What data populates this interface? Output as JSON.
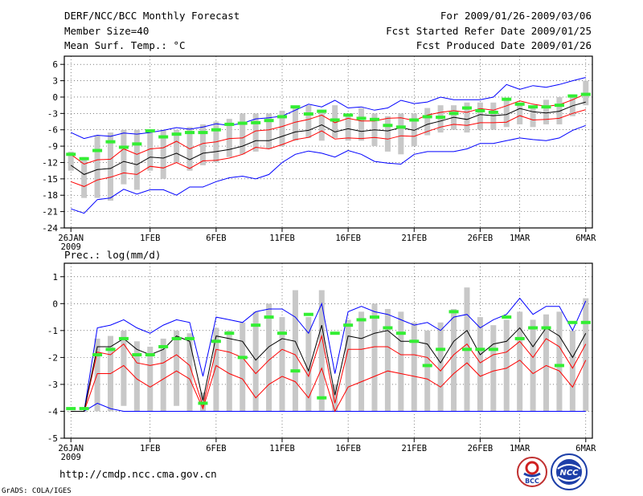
{
  "header": {
    "title": "DERF/NCC/BCC Monthly Forecast",
    "member_size": "Member Size=40",
    "variable": "Mean Surf. Temp.: °C",
    "period": "For 2009/01/26-2009/03/06",
    "start_date": "Fcst Started Refer Date 2009/01/25",
    "produced": "Fcst Produced Date 2009/01/26"
  },
  "footer": {
    "url": "http://cmdp.ncc.cma.gov.cn",
    "credit": "GrADS: COLA/IGES",
    "logo_bcc": "BCC",
    "logo_ncc": "NCC"
  },
  "colors": {
    "envelope": "#0000ff",
    "percentile": "#ff0000",
    "median": "#000000",
    "box": "#c8c8c8",
    "observed": "#33ee33",
    "grid": "#333333"
  },
  "chart_data": [
    {
      "type": "box-ensemble",
      "title": "Mean Surf. Temp.: °C",
      "ylabel": "°C",
      "ylim": [
        -24,
        7.5
      ],
      "yticks": [
        6,
        3,
        0,
        -3,
        -6,
        -9,
        -12,
        -15,
        -18,
        -21,
        -24
      ],
      "xticks": [
        {
          "day": 0,
          "label": "26JAN",
          "sub": "2009"
        },
        {
          "day": 6,
          "label": "1FEB"
        },
        {
          "day": 11,
          "label": "6FEB"
        },
        {
          "day": 16,
          "label": "11FEB"
        },
        {
          "day": 21,
          "label": "16FEB"
        },
        {
          "day": 26,
          "label": "21FEB"
        },
        {
          "day": 31,
          "label": "26FEB"
        },
        {
          "day": 34,
          "label": "1MAR"
        },
        {
          "day": 39,
          "label": "6MAR"
        }
      ],
      "median": [
        -12.5,
        -14.2,
        -13.3,
        -13.1,
        -11.8,
        -12.4,
        -11.0,
        -11.2,
        -10.3,
        -11.5,
        -10.3,
        -10.0,
        -9.6,
        -9.0,
        -8.0,
        -8.0,
        -7.2,
        -6.4,
        -6.1,
        -5.1,
        -6.4,
        -5.8,
        -6.3,
        -6.0,
        -6.2,
        -5.6,
        -6.1,
        -5.0,
        -4.4,
        -3.7,
        -4.1,
        -3.2,
        -3.4,
        -3.2,
        -2.1,
        -2.7,
        -2.9,
        -2.6,
        -1.6,
        -0.9
      ],
      "upper_pct": [
        -10.5,
        -12.3,
        -11.5,
        -11.4,
        -9.5,
        -10.5,
        -9.5,
        -9.3,
        -8.1,
        -9.5,
        -8.5,
        -8.2,
        -7.6,
        -7.5,
        -6.2,
        -6.0,
        -5.4,
        -4.6,
        -4.1,
        -3.3,
        -4.7,
        -3.9,
        -4.4,
        -4.4,
        -3.9,
        -3.8,
        -4.3,
        -3.3,
        -2.8,
        -2.5,
        -2.8,
        -2.1,
        -2.4,
        -1.6,
        -0.7,
        -1.3,
        -1.7,
        -1.4,
        -0.5,
        0.6
      ],
      "lower_pct": [
        -15.5,
        -16.4,
        -15.2,
        -14.7,
        -13.9,
        -14.2,
        -12.7,
        -13.0,
        -12.0,
        -13.1,
        -11.7,
        -11.6,
        -11.2,
        -10.5,
        -9.2,
        -9.5,
        -8.7,
        -7.8,
        -7.4,
        -6.2,
        -7.7,
        -7.5,
        -7.6,
        -7.4,
        -7.7,
        -7.1,
        -7.2,
        -6.3,
        -5.5,
        -5.0,
        -5.2,
        -4.7,
        -4.7,
        -4.6,
        -3.4,
        -4.2,
        -4.1,
        -3.9,
        -3.0,
        -2.3
      ],
      "max": [
        -6.5,
        -7.6,
        -7.0,
        -7.2,
        -6.6,
        -6.8,
        -6.5,
        -6.1,
        -5.6,
        -5.9,
        -5.5,
        -4.9,
        -5.2,
        -4.8,
        -4.0,
        -3.8,
        -3.5,
        -2.4,
        -1.3,
        -1.8,
        -0.6,
        -2.0,
        -1.8,
        -2.4,
        -2.0,
        -0.6,
        -1.2,
        -0.9,
        0.0,
        -0.5,
        -0.5,
        -0.5,
        0.0,
        2.3,
        1.4,
        2.1,
        1.8,
        2.3,
        3.0,
        3.6
      ],
      "min": [
        -20.5,
        -21.3,
        -18.8,
        -18.5,
        -16.9,
        -17.8,
        -17.0,
        -17.0,
        -18.0,
        -16.5,
        -16.5,
        -15.5,
        -14.8,
        -14.5,
        -15.0,
        -14.2,
        -12.0,
        -10.5,
        -9.9,
        -10.3,
        -11.0,
        -9.8,
        -10.5,
        -11.8,
        -12.1,
        -12.3,
        -10.5,
        -10.0,
        -10.0,
        -10.0,
        -9.5,
        -8.5,
        -8.5,
        -8.0,
        -7.5,
        -7.8,
        -8.0,
        -7.5,
        -6.1,
        -5.2
      ],
      "box_top": [
        -10,
        -11,
        -7,
        -6.5,
        -6,
        -6,
        -6.5,
        -6,
        -6,
        -5.5,
        -5,
        -4.5,
        -4,
        -3,
        -3,
        -3,
        -2.5,
        -2,
        -1.5,
        -2.5,
        -1.5,
        -3,
        -2,
        -3,
        -3.5,
        -3,
        -3,
        -2,
        -1.5,
        -1.5,
        -1,
        -1,
        -1,
        -0.5,
        -1,
        -1.5,
        -0.5,
        0,
        0.5,
        3
      ],
      "box_bottom": [
        -13.5,
        -18.5,
        -18.5,
        -19,
        -16,
        -17,
        -13.5,
        -15,
        -12,
        -13.5,
        -12.5,
        -12,
        -11,
        -10.5,
        -10,
        -9.5,
        -9,
        -8,
        -7.5,
        -8,
        -7.5,
        -8,
        -8,
        -9,
        -10,
        -10.5,
        -9,
        -7,
        -6.5,
        -6,
        -6.5,
        -6,
        -6,
        -5.5,
        -5,
        -5.5,
        -5,
        -5,
        -3.5,
        -1.5
      ],
      "observed": [
        -10.5,
        -11.3,
        -9.8,
        -8.2,
        -9.2,
        -8.6,
        -6.2,
        -7.3,
        -6.8,
        -6.5,
        -6.5,
        -6.0,
        -5.0,
        -4.8,
        -4.7,
        -4.3,
        -3.6,
        -1.8,
        -3.1,
        -2.6,
        -4.2,
        -3.3,
        -3.9,
        -4.1,
        -5.2,
        -5.5,
        -4.2,
        -3.6,
        -3.7,
        -3.0,
        -2.0,
        -2.5,
        -2.8,
        -0.4,
        -1.3,
        -1.8,
        -1.8,
        -1.5,
        0.2,
        0.5
      ]
    },
    {
      "type": "box-ensemble",
      "title": "Prec.: log(mm/d)",
      "ylabel": "log(mm/d)",
      "ylim": [
        -5,
        1.5
      ],
      "yticks": [
        1,
        0,
        -1,
        -2,
        -3,
        -4,
        -5
      ],
      "xticks": [
        {
          "day": 0,
          "label": "26JAN",
          "sub": "2009"
        },
        {
          "day": 6,
          "label": "1FEB"
        },
        {
          "day": 11,
          "label": "6FEB"
        },
        {
          "day": 16,
          "label": "11FEB"
        },
        {
          "day": 21,
          "label": "16FEB"
        },
        {
          "day": 26,
          "label": "21FEB"
        },
        {
          "day": 31,
          "label": "26FEB"
        },
        {
          "day": 34,
          "label": "1MAR"
        },
        {
          "day": 39,
          "label": "6MAR"
        }
      ],
      "median": [
        -4,
        -4,
        -1.6,
        -1.6,
        -1.3,
        -1.7,
        -1.9,
        -1.7,
        -1.2,
        -1.4,
        -3.6,
        -1.2,
        -1.3,
        -1.4,
        -2.1,
        -1.6,
        -1.3,
        -1.4,
        -2.5,
        -0.8,
        -3.4,
        -1.2,
        -1.3,
        -1.1,
        -1.0,
        -1.4,
        -1.4,
        -1.5,
        -2.2,
        -1.4,
        -1.0,
        -1.9,
        -1.5,
        -1.4,
        -0.9,
        -1.6,
        -0.9,
        -1.2,
        -2.0,
        -1.1
      ],
      "upper_pct": [
        -4,
        -4,
        -1.8,
        -1.9,
        -1.5,
        -2.2,
        -2.3,
        -2.2,
        -1.9,
        -2.3,
        -3.8,
        -1.7,
        -1.8,
        -2.0,
        -2.6,
        -2.1,
        -1.7,
        -1.9,
        -2.7,
        -1.2,
        -3.7,
        -1.7,
        -1.7,
        -1.6,
        -1.6,
        -1.9,
        -1.9,
        -2.0,
        -2.5,
        -1.9,
        -1.5,
        -2.2,
        -1.9,
        -1.8,
        -1.4,
        -2.0,
        -1.3,
        -1.6,
        -2.4,
        -1.5
      ],
      "lower_pct": [
        -4,
        -4,
        -2.6,
        -2.6,
        -2.3,
        -2.8,
        -3.1,
        -2.8,
        -2.5,
        -2.8,
        -3.9,
        -2.3,
        -2.6,
        -2.8,
        -3.5,
        -3.0,
        -2.7,
        -2.9,
        -3.5,
        -2.4,
        -4.0,
        -3.1,
        -2.9,
        -2.7,
        -2.5,
        -2.6,
        -2.7,
        -2.8,
        -3.1,
        -2.6,
        -2.2,
        -2.7,
        -2.5,
        -2.4,
        -2.1,
        -2.6,
        -2.3,
        -2.5,
        -3.1,
        -2.1
      ],
      "max": [
        -4,
        -4,
        -0.9,
        -0.8,
        -0.6,
        -0.9,
        -1.1,
        -0.8,
        -0.6,
        -0.7,
        -2.7,
        -0.5,
        -0.6,
        -0.7,
        -0.3,
        -0.2,
        -0.2,
        -0.5,
        -1.1,
        0.0,
        -2.6,
        -0.3,
        -0.1,
        -0.3,
        -0.4,
        -0.6,
        -0.8,
        -0.7,
        -1.0,
        -0.5,
        -0.4,
        -0.9,
        -0.6,
        -0.4,
        0.2,
        -0.4,
        -0.1,
        -0.1,
        -1.0,
        0.1
      ],
      "min": [
        -4,
        -4,
        -3.7,
        -3.9,
        -4,
        -4,
        -4,
        -4,
        -4,
        -4,
        -4,
        -4,
        -4,
        -4,
        -4,
        -4,
        -4,
        -4,
        -4,
        -4,
        -4,
        -4,
        -4,
        -4,
        -4,
        -4,
        -4,
        -4,
        -4,
        -4,
        -4,
        -4,
        -4,
        -4,
        -4,
        -4,
        -4,
        -4,
        -4,
        -4
      ],
      "box_top": [
        -4,
        -4,
        -1.3,
        -1.2,
        -1.0,
        -1.4,
        -1.6,
        -1.3,
        -1.0,
        -1.1,
        -3.3,
        -0.9,
        -1.0,
        -0.7,
        -0.3,
        0.0,
        -0.5,
        0.5,
        -0.5,
        0.5,
        -3.0,
        -0.6,
        -0.3,
        0.0,
        -0.2,
        -0.3,
        -0.7,
        -1.0,
        -0.7,
        -0.2,
        0.6,
        -0.5,
        -0.8,
        -0.6,
        -0.3,
        -0.6,
        -0.4,
        -0.3,
        -1.0,
        0.2
      ],
      "box_bottom": [
        -4,
        -4,
        -4,
        -4,
        -3.8,
        -4,
        -4,
        -4,
        -3.8,
        -4,
        -4,
        -4,
        -4,
        -4,
        -4,
        -4,
        -4,
        -4,
        -4,
        -4,
        -4,
        -4,
        -4,
        -4,
        -4,
        -4,
        -4,
        -4,
        -4,
        -4,
        -4,
        -4,
        -4,
        -4,
        -4,
        -4,
        -4,
        -4,
        -4,
        -4
      ],
      "observed": [
        -3.9,
        -3.9,
        -1.9,
        -1.7,
        -1.3,
        -1.9,
        -1.9,
        -1.6,
        -1.3,
        -1.3,
        -3.7,
        -1.4,
        -1.1,
        -2.0,
        -0.8,
        -0.5,
        -1.1,
        -2.5,
        -0.4,
        -3.5,
        -1.1,
        -0.8,
        -0.6,
        -0.5,
        -0.9,
        -1.1,
        -1.4,
        -2.3,
        -1.7,
        -0.3,
        -1.7,
        -1.7,
        -1.7,
        -0.5,
        -1.3,
        -0.9,
        -0.9,
        -2.3,
        -0.7,
        -0.7
      ]
    }
  ]
}
